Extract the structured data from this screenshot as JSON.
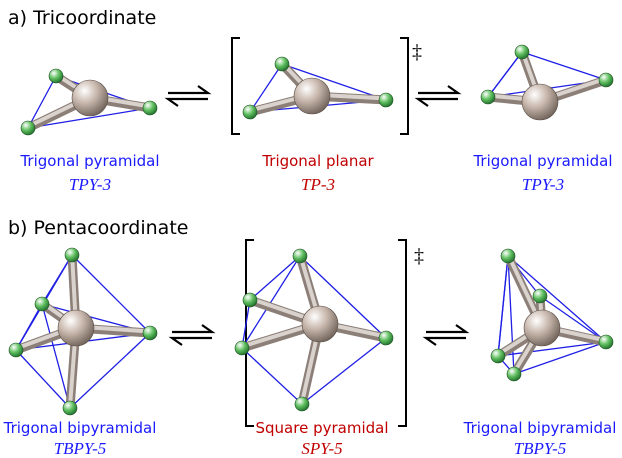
{
  "section_a": {
    "title": "a) Tricoordinate",
    "transition_mark": "‡",
    "structures": [
      {
        "name": "Trigonal pyramidal",
        "symbol": "TPY-3"
      },
      {
        "name": "Trigonal planar",
        "symbol": "TP-3"
      },
      {
        "name": "Trigonal pyramidal",
        "symbol": "TPY-3"
      }
    ]
  },
  "section_b": {
    "title": "b) Pentacoordinate",
    "transition_mark": "‡",
    "structures": [
      {
        "name": "Trigonal bipyramidal",
        "symbol": "TBPY-5"
      },
      {
        "name": "Square pyramidal",
        "symbol": "SPY-5"
      },
      {
        "name": "Trigonal bipyramidal",
        "symbol": "TBPY-5"
      }
    ]
  }
}
